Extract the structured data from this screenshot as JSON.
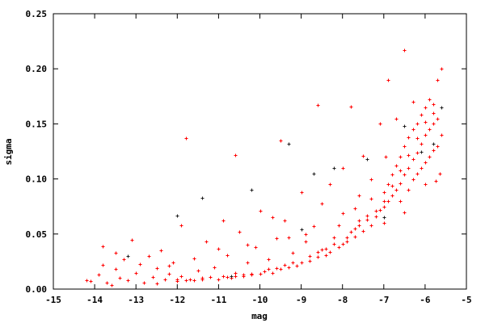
{
  "chart_data": {
    "type": "scatter",
    "title": "",
    "xlabel": "mag",
    "ylabel": "sigma",
    "xlim": [
      -15,
      -5
    ],
    "ylim": [
      0,
      0.25
    ],
    "grid": false,
    "legend": "none",
    "marker": "plus",
    "xticks": [
      "-15",
      "-14",
      "-13",
      "-12",
      "-11",
      "-10",
      "-9",
      "-8",
      "-7",
      "-6",
      "-5"
    ],
    "yticks": [
      "0.00",
      "0.05",
      "0.10",
      "0.15",
      "0.20",
      "0.25"
    ],
    "series": [
      {
        "color": "#ff0000",
        "points": [
          [
            -14.2,
            0.008
          ],
          [
            -14.1,
            0.007
          ],
          [
            -13.9,
            0.013
          ],
          [
            -13.8,
            0.039
          ],
          [
            -13.8,
            0.022
          ],
          [
            -13.7,
            0.006
          ],
          [
            -13.5,
            0.018
          ],
          [
            -13.4,
            0.01
          ],
          [
            -13.3,
            0.027
          ],
          [
            -13.2,
            0.008
          ],
          [
            -13.1,
            0.045
          ],
          [
            -13.0,
            0.015
          ],
          [
            -12.9,
            0.023
          ],
          [
            -12.8,
            0.006
          ],
          [
            -12.7,
            0.03
          ],
          [
            -12.6,
            0.011
          ],
          [
            -12.5,
            0.019
          ],
          [
            -12.4,
            0.035
          ],
          [
            -12.3,
            0.009
          ],
          [
            -12.2,
            0.014
          ],
          [
            -12.1,
            0.024
          ],
          [
            -12.0,
            0.007
          ],
          [
            -11.9,
            0.058
          ],
          [
            -11.9,
            0.012
          ],
          [
            -11.8,
            0.137
          ],
          [
            -11.7,
            0.009
          ],
          [
            -11.6,
            0.028
          ],
          [
            -11.5,
            0.017
          ],
          [
            -11.4,
            0.01
          ],
          [
            -11.3,
            0.043
          ],
          [
            -11.2,
            0.011
          ],
          [
            -11.1,
            0.02
          ],
          [
            -11.0,
            0.009
          ],
          [
            -10.9,
            0.062
          ],
          [
            -10.9,
            0.012
          ],
          [
            -10.8,
            0.031
          ],
          [
            -10.7,
            0.01
          ],
          [
            -10.6,
            0.122
          ],
          [
            -10.6,
            0.015
          ],
          [
            -10.5,
            0.052
          ],
          [
            -10.4,
            0.012
          ],
          [
            -10.3,
            0.024
          ],
          [
            -10.2,
            0.013
          ],
          [
            -10.1,
            0.038
          ],
          [
            -10.0,
            0.014
          ],
          [
            -10.0,
            0.071
          ],
          [
            -9.9,
            0.016
          ],
          [
            -9.8,
            0.027
          ],
          [
            -9.7,
            0.015
          ],
          [
            -9.6,
            0.046
          ],
          [
            -9.5,
            0.135
          ],
          [
            -9.5,
            0.018
          ],
          [
            -9.4,
            0.062
          ],
          [
            -9.3,
            0.02
          ],
          [
            -9.2,
            0.033
          ],
          [
            -9.1,
            0.021
          ],
          [
            -9.0,
            0.088
          ],
          [
            -9.0,
            0.024
          ],
          [
            -8.9,
            0.043
          ],
          [
            -8.8,
            0.026
          ],
          [
            -8.7,
            0.057
          ],
          [
            -8.6,
            0.167
          ],
          [
            -8.6,
            0.029
          ],
          [
            -8.5,
            0.036
          ],
          [
            -8.4,
            0.031
          ],
          [
            -8.3,
            0.095
          ],
          [
            -8.3,
            0.034
          ],
          [
            -8.2,
            0.047
          ],
          [
            -8.1,
            0.038
          ],
          [
            -8.0,
            0.041
          ],
          [
            -8.0,
            0.069
          ],
          [
            -7.9,
            0.043
          ],
          [
            -7.8,
            0.052
          ],
          [
            -7.8,
            0.166
          ],
          [
            -7.7,
            0.048
          ],
          [
            -7.6,
            0.058
          ],
          [
            -7.5,
            0.121
          ],
          [
            -7.5,
            0.053
          ],
          [
            -7.4,
            0.063
          ],
          [
            -7.3,
            0.058
          ],
          [
            -7.3,
            0.082
          ],
          [
            -7.2,
            0.066
          ],
          [
            -7.1,
            0.072
          ],
          [
            -7.1,
            0.15
          ],
          [
            -7.0,
            0.075
          ],
          [
            -7.0,
            0.088
          ],
          [
            -6.9,
            0.08
          ],
          [
            -6.9,
            0.095
          ],
          [
            -6.9,
            0.19
          ],
          [
            -6.8,
            0.085
          ],
          [
            -6.8,
            0.104
          ],
          [
            -6.7,
            0.09
          ],
          [
            -6.7,
            0.112
          ],
          [
            -6.6,
            0.096
          ],
          [
            -6.6,
            0.12
          ],
          [
            -6.6,
            0.08
          ],
          [
            -6.5,
            0.104
          ],
          [
            -6.5,
            0.13
          ],
          [
            -6.5,
            0.217
          ],
          [
            -6.4,
            0.11
          ],
          [
            -6.4,
            0.138
          ],
          [
            -6.4,
            0.09
          ],
          [
            -6.3,
            0.118
          ],
          [
            -6.3,
            0.145
          ],
          [
            -6.3,
            0.1
          ],
          [
            -6.2,
            0.124
          ],
          [
            -6.2,
            0.15
          ],
          [
            -6.2,
            0.105
          ],
          [
            -6.1,
            0.132
          ],
          [
            -6.1,
            0.158
          ],
          [
            -6.1,
            0.11
          ],
          [
            -6.0,
            0.14
          ],
          [
            -6.0,
            0.165
          ],
          [
            -6.0,
            0.115
          ],
          [
            -5.9,
            0.145
          ],
          [
            -5.9,
            0.172
          ],
          [
            -5.9,
            0.12
          ],
          [
            -5.8,
            0.15
          ],
          [
            -5.8,
            0.168
          ],
          [
            -5.8,
            0.126
          ],
          [
            -5.7,
            0.155
          ],
          [
            -5.7,
            0.19
          ],
          [
            -5.7,
            0.13
          ],
          [
            -5.6,
            0.2
          ],
          [
            -5.6,
            0.14
          ],
          [
            -5.6,
            0.165
          ],
          [
            -5.65,
            0.105
          ],
          [
            -5.75,
            0.098
          ],
          [
            -9.8,
            0.018
          ],
          [
            -9.6,
            0.019
          ],
          [
            -9.4,
            0.022
          ],
          [
            -9.2,
            0.024
          ],
          [
            -8.8,
            0.03
          ],
          [
            -8.6,
            0.034
          ],
          [
            -8.4,
            0.037
          ],
          [
            -8.2,
            0.041
          ],
          [
            -7.9,
            0.047
          ],
          [
            -7.7,
            0.055
          ],
          [
            -7.6,
            0.062
          ],
          [
            -7.4,
            0.067
          ],
          [
            -7.2,
            0.071
          ],
          [
            -7.0,
            0.08
          ],
          [
            -6.8,
            0.094
          ],
          [
            -6.6,
            0.108
          ],
          [
            -6.4,
            0.122
          ],
          [
            -6.2,
            0.137
          ],
          [
            -6.0,
            0.152
          ],
          [
            -5.8,
            0.16
          ],
          [
            -10.8,
            0.011
          ],
          [
            -10.6,
            0.012
          ],
          [
            -10.4,
            0.013
          ],
          [
            -10.2,
            0.014
          ],
          [
            -11.4,
            0.009
          ],
          [
            -11.6,
            0.008
          ],
          [
            -11.8,
            0.008
          ],
          [
            -12.0,
            0.009
          ],
          [
            -8.1,
            0.058
          ],
          [
            -7.7,
            0.073
          ],
          [
            -7.3,
            0.1
          ],
          [
            -6.95,
            0.12
          ],
          [
            -8.9,
            0.05
          ],
          [
            -8.5,
            0.078
          ],
          [
            -9.3,
            0.047
          ],
          [
            -10.3,
            0.04
          ],
          [
            -12.5,
            0.005
          ],
          [
            -13.6,
            0.004
          ],
          [
            -7.6,
            0.085
          ],
          [
            -6.7,
            0.155
          ],
          [
            -6.3,
            0.17
          ],
          [
            -8.0,
            0.11
          ],
          [
            -9.7,
            0.065
          ],
          [
            -11.0,
            0.037
          ],
          [
            -12.2,
            0.021
          ],
          [
            -13.5,
            0.033
          ],
          [
            -6.0,
            0.095
          ],
          [
            -6.5,
            0.07
          ],
          [
            -7.0,
            0.06
          ]
        ]
      },
      {
        "color": "#202020",
        "points": [
          [
            -13.2,
            0.03
          ],
          [
            -12.0,
            0.067
          ],
          [
            -11.4,
            0.083
          ],
          [
            -10.2,
            0.09
          ],
          [
            -9.3,
            0.132
          ],
          [
            -8.2,
            0.11
          ],
          [
            -7.4,
            0.118
          ],
          [
            -7.0,
            0.065
          ],
          [
            -6.5,
            0.148
          ],
          [
            -6.1,
            0.125
          ],
          [
            -5.8,
            0.132
          ],
          [
            -5.6,
            0.165
          ],
          [
            -10.7,
            0.012
          ],
          [
            -9.0,
            0.054
          ],
          [
            -8.7,
            0.105
          ]
        ]
      }
    ]
  }
}
